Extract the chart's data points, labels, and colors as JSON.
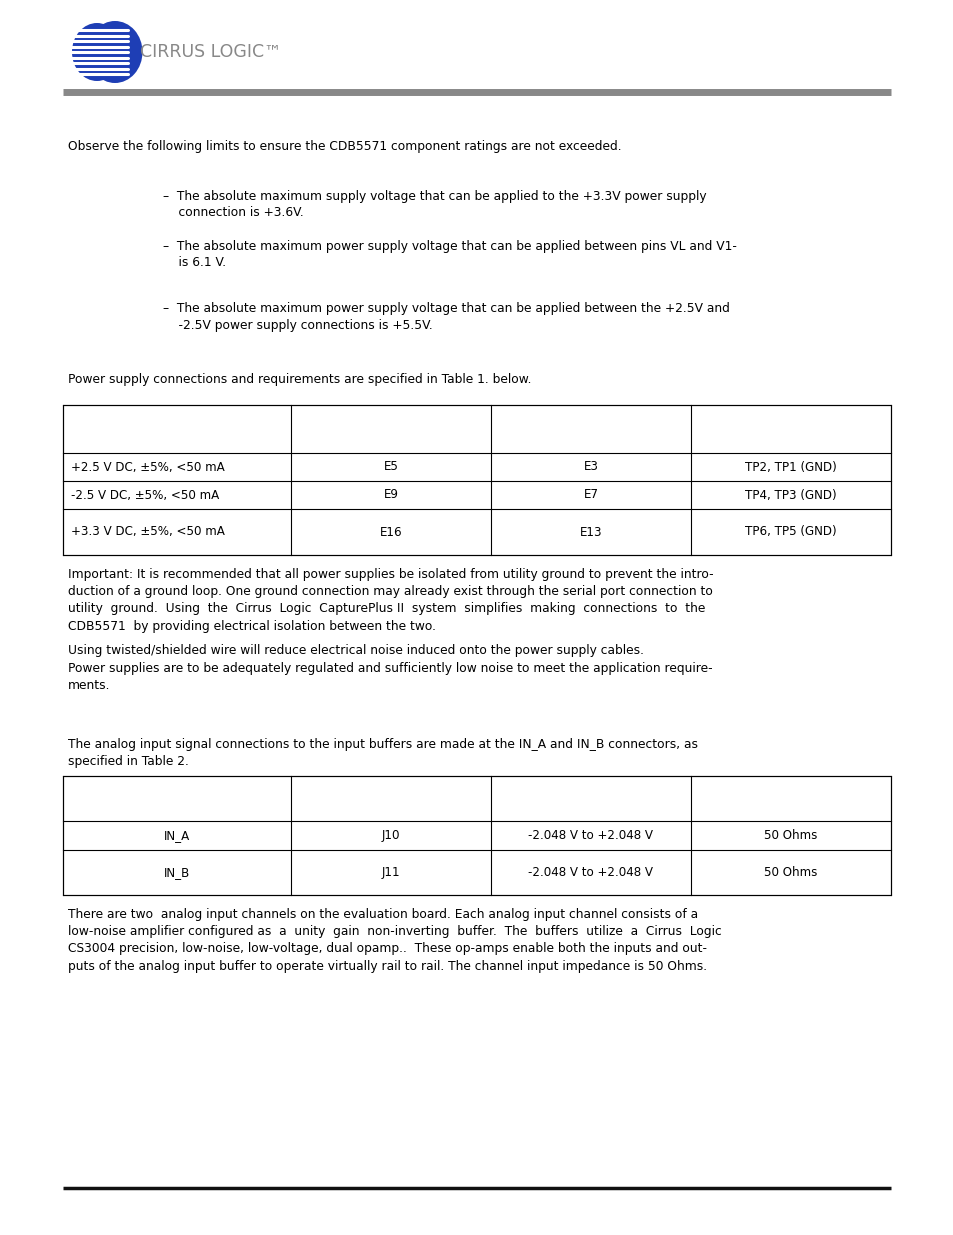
{
  "bg_color": "#ffffff",
  "header_line_color": "#888888",
  "footer_line_color": "#111111",
  "logo_text": "CIRRUS LOGIC",
  "section1_intro": "Observe the following limits to ensure the CDB5571 component ratings are not exceeded.",
  "bullet1_dash": "–  The absolute maximum supply voltage that can be applied to the +3.3V power supply\n    connection is +3.6V.",
  "bullet2_dash": "–  The absolute maximum power supply voltage that can be applied between pins VL and V1-\n    is 6.1 V.",
  "bullet3_dash": "–  The absolute maximum power supply voltage that can be applied between the +2.5V and\n    -2.5V power supply connections is +5.5V.",
  "section2_intro": "Power supply connections and requirements are specified in Table 1. below.",
  "table1_rows": [
    [
      "+2.5 V DC, ±5%, <50 mA",
      "E5",
      "E3",
      "TP2, TP1 (GND)"
    ],
    [
      "-2.5 V DC, ±5%, <50 mA",
      "E9",
      "E7",
      "TP4, TP3 (GND)"
    ],
    [
      "+3.3 V DC, ±5%, <50 mA",
      "E16",
      "E13",
      "TP6, TP5 (GND)"
    ]
  ],
  "important_text": "Important: It is recommended that all power supplies be isolated from utility ground to prevent the intro-\nduction of a ground loop. One ground connection may already exist through the serial port connection to\nutility  ground.  Using  the  Cirrus  Logic  CapturePlus II  system  simplifies  making  connections  to  the\nCDB5571  by providing electrical isolation between the two.",
  "noise_text": "Using twisted/shielded wire will reduce electrical noise induced onto the power supply cables.",
  "regulated_text": "Power supplies are to be adequately regulated and sufficiently low noise to meet the application require-\nments.",
  "section3_intro": "The analog input signal connections to the input buffers are made at the IN_A and IN_B connectors, as\nspecified in Table 2.",
  "table2_rows": [
    [
      "IN_A",
      "J10",
      "-2.048 V to +2.048 V",
      "50 Ohms"
    ],
    [
      "IN_B",
      "J11",
      "-2.048 V to +2.048 V",
      "50 Ohms"
    ]
  ],
  "final_text": "There are two  analog input channels on the evaluation board. Each analog input channel consists of a\nlow-noise amplifier configured as  a  unity  gain  non-inverting  buffer.  The  buffers  utilize  a  Cirrus  Logic\nCS3004 precision, low-noise, low-voltage, dual opamp..  These op-amps enable both the inputs and out-\nputs of the analog input buffer to operate virtually rail to rail. The channel input impedance is 50 Ohms.",
  "font_size": 8.8,
  "logo_blue": "#1e3eb5",
  "logo_text_color": "#888888"
}
